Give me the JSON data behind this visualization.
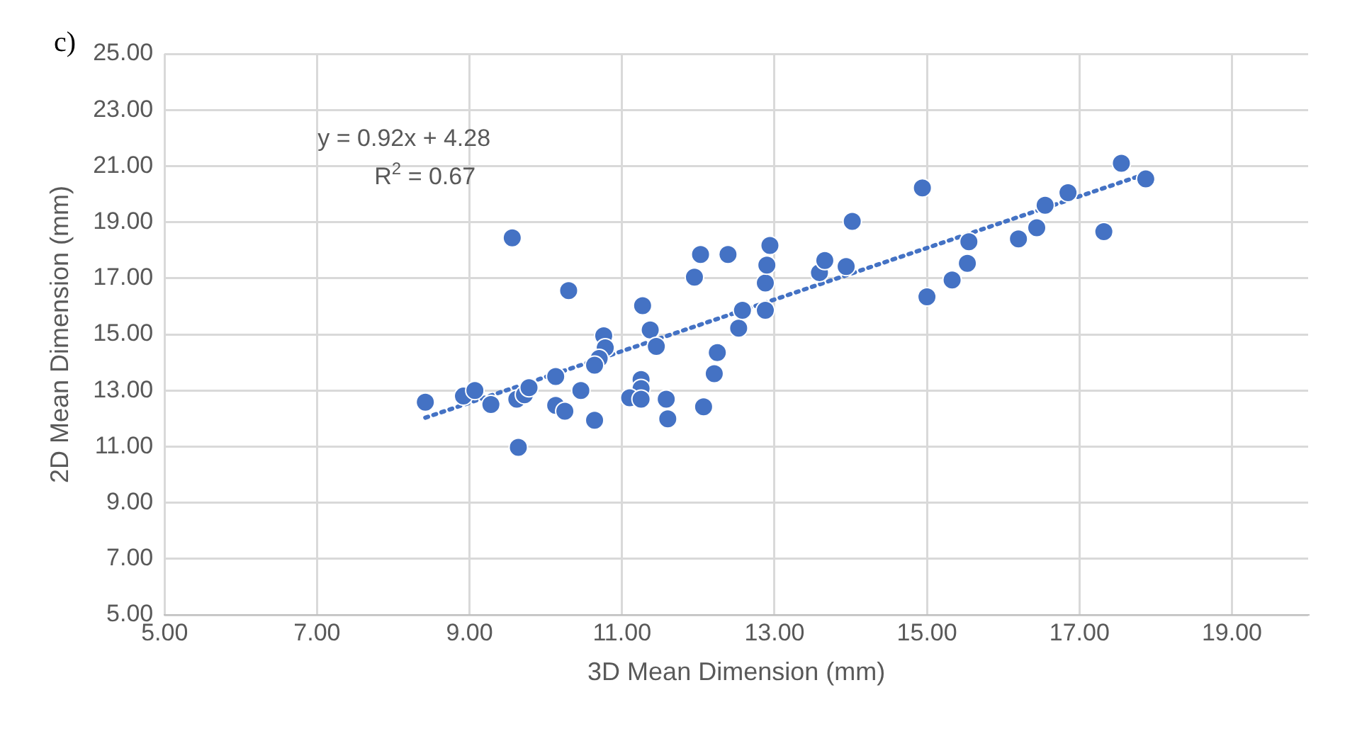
{
  "chart_data": {
    "type": "scatter",
    "xlabel": "3D Mean Dimension (mm)",
    "ylabel": "2D Mean Dimension (mm)",
    "annotations": [
      "c)",
      "y = 0.92x + 4.28",
      "R$^{2}$ = 0.67"
    ],
    "xlim": [
      5,
      20
    ],
    "xticks": [
      {
        "value": 5,
        "label": "5.00"
      },
      {
        "value": 7,
        "label": "7.00"
      },
      {
        "value": 9,
        "label": "9.00"
      },
      {
        "value": 11,
        "label": "11.00"
      },
      {
        "value": 13,
        "label": "13.00"
      },
      {
        "value": 15,
        "label": "15.00"
      },
      {
        "value": 17,
        "label": "17.00"
      },
      {
        "value": 19,
        "label": "19.00"
      }
    ],
    "ylim": [
      5,
      25
    ],
    "yticks": [
      {
        "value": 5,
        "label": "5.00"
      },
      {
        "value": 7,
        "label": "7.00"
      },
      {
        "value": 9,
        "label": "9.00"
      },
      {
        "value": 11,
        "label": "11.00"
      },
      {
        "value": 13,
        "label": "13.00"
      },
      {
        "value": 15,
        "label": "15.00"
      },
      {
        "value": 17,
        "label": "17.00"
      },
      {
        "value": 19,
        "label": "19.00"
      },
      {
        "value": 21,
        "label": "21.00"
      },
      {
        "value": 23,
        "label": "23.00"
      },
      {
        "value": 25,
        "label": "25.00"
      }
    ],
    "grid": true,
    "marker": "circle",
    "series": [
      {
        "color": "#4472c4",
        "x": [
          8.42,
          8.92,
          9.07,
          9.28,
          9.56,
          9.62,
          9.72,
          9.78,
          9.64,
          10.3,
          10.13,
          10.13,
          10.25,
          10.46,
          10.64,
          10.76,
          10.78,
          10.7,
          10.64,
          11.27,
          11.25,
          11.25,
          11.1,
          11.25,
          11.37,
          11.45,
          11.58,
          11.6,
          11.95,
          12.03,
          12.07,
          12.21,
          12.25,
          12.39,
          12.53,
          12.58,
          12.88,
          12.88,
          12.9,
          12.94,
          13.59,
          13.66,
          13.94,
          14.02,
          14.94,
          15.0,
          15.33,
          15.53,
          15.55,
          16.2,
          16.44,
          16.55,
          16.85,
          17.32,
          17.55,
          17.87
        ],
        "values": [
          12.58,
          12.8,
          13.0,
          12.5,
          18.44,
          12.69,
          12.85,
          13.1,
          10.97,
          16.56,
          13.5,
          12.47,
          12.26,
          13.0,
          11.94,
          14.95,
          14.52,
          14.14,
          13.9,
          16.02,
          13.39,
          13.07,
          12.74,
          12.69,
          15.16,
          14.57,
          12.69,
          11.99,
          17.04,
          17.85,
          12.42,
          13.6,
          14.35,
          17.85,
          15.22,
          15.86,
          15.86,
          16.83,
          17.47,
          18.17,
          17.2,
          17.63,
          17.42,
          19.03,
          20.22,
          16.34,
          16.94,
          17.53,
          18.3,
          18.4,
          18.8,
          19.6,
          20.05,
          18.66,
          21.1,
          20.54
        ]
      },
      {
        "type": "line",
        "color": "#4472c4",
        "line_style": "dotted",
        "marker": "none",
        "x": [
          8.42,
          17.87
        ],
        "values": [
          12.03,
          20.72
        ]
      }
    ]
  }
}
